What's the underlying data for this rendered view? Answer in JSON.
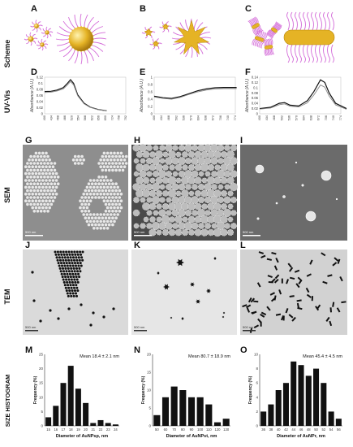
{
  "panel_letters": [
    "A",
    "B",
    "C",
    "D",
    "E",
    "F",
    "G",
    "H",
    "I",
    "J",
    "K",
    "L",
    "M",
    "N",
    "O"
  ],
  "row_labels": [
    "Scheme",
    "UV-Vis",
    "SEM",
    "TEM",
    "SIZE HISTOGRAM"
  ],
  "sem_scalebars": [
    "500 nm",
    "500 nm",
    "500 nm"
  ],
  "tem_scalebars": [
    "500 nm",
    "500 nm",
    "500 nm"
  ],
  "colors": {
    "gold": "#e5b325",
    "ligand": "#d36ad8",
    "ligand_tip": "#e5b325",
    "line_dark": "#111111",
    "line_light": "#888888",
    "sem_bg": "#9a9a9a",
    "tem_bg": "#d8d8d8"
  },
  "chart_data": [
    {
      "panel": "D",
      "type": "line",
      "ylabel": "Absorbance (A.U.)",
      "ylim": [
        0,
        0.12
      ],
      "yticks": [
        "0",
        "0.02",
        "0.04",
        "0.06",
        "0.08",
        "0.1",
        "0.12"
      ],
      "xticks": [
        "400",
        "434",
        "468",
        "486",
        "520",
        "554",
        "588",
        "622",
        "656",
        "690",
        "724",
        "758",
        "792"
      ],
      "x": [
        400,
        430,
        460,
        490,
        510,
        525,
        540,
        560,
        590,
        620,
        660,
        700
      ],
      "series": [
        {
          "values": [
            0.073,
            0.074,
            0.078,
            0.086,
            0.1,
            0.112,
            0.1,
            0.062,
            0.035,
            0.022,
            0.014,
            0.01
          ]
        },
        {
          "values": [
            0.07,
            0.071,
            0.075,
            0.082,
            0.095,
            0.106,
            0.095,
            0.059,
            0.033,
            0.021,
            0.013,
            0.01
          ]
        }
      ]
    },
    {
      "panel": "E",
      "type": "line",
      "ylabel": "Absorbance (A.U.)",
      "ylim": [
        0,
        1
      ],
      "yticks": [
        "0",
        "0.2",
        "0.4",
        "0.6",
        "0.8",
        "1"
      ],
      "xticks": [
        "400",
        "434",
        "468",
        "502",
        "536",
        "570",
        "604",
        "638",
        "672",
        "706",
        "740",
        "774"
      ],
      "x": [
        400,
        440,
        480,
        520,
        560,
        600,
        640,
        680,
        720,
        780
      ],
      "series": [
        {
          "values": [
            0.48,
            0.44,
            0.42,
            0.47,
            0.55,
            0.63,
            0.68,
            0.71,
            0.72,
            0.72
          ]
        },
        {
          "values": [
            0.46,
            0.42,
            0.4,
            0.45,
            0.53,
            0.6,
            0.65,
            0.68,
            0.69,
            0.69
          ]
        }
      ]
    },
    {
      "panel": "F",
      "type": "line",
      "ylabel": "Absorbance (A.U.)",
      "ylim": [
        0,
        0.14
      ],
      "yticks": [
        "0",
        "0.02",
        "0.04",
        "0.06",
        "0.08",
        "0.1",
        "0.12",
        "0.14"
      ],
      "xticks": [
        "400",
        "434",
        "468",
        "502",
        "536",
        "570",
        "604",
        "638",
        "672",
        "706",
        "740",
        "774"
      ],
      "x": [
        400,
        450,
        490,
        515,
        540,
        580,
        620,
        650,
        680,
        700,
        720,
        750,
        800
      ],
      "series": [
        {
          "values": [
            0.02,
            0.025,
            0.04,
            0.043,
            0.033,
            0.03,
            0.05,
            0.085,
            0.13,
            0.12,
            0.08,
            0.04,
            0.02
          ]
        },
        {
          "values": [
            0.018,
            0.022,
            0.035,
            0.038,
            0.029,
            0.026,
            0.042,
            0.072,
            0.11,
            0.102,
            0.068,
            0.034,
            0.017
          ]
        }
      ]
    },
    {
      "panel": "M",
      "type": "bar",
      "annotation": "Mean 18.4 ± 2.1 nm",
      "xlabel": "Diameter of AuNPsp, nm",
      "ylabel": "Frequency (%)",
      "ylim": [
        0,
        25
      ],
      "yticks": [
        "0",
        "5",
        "10",
        "15",
        "20",
        "25"
      ],
      "categories": [
        "15",
        "16",
        "17",
        "18",
        "19",
        "20",
        "21",
        "22",
        "23",
        "24"
      ],
      "values": [
        3,
        7,
        15,
        21,
        13,
        8,
        1,
        2,
        1,
        0.5
      ]
    },
    {
      "panel": "N",
      "type": "bar",
      "annotation": "Mean 80.7 ± 18.9 nm",
      "xlabel": "Diameter of AuNPst, nm",
      "ylabel": "Frequency (%)",
      "ylim": [
        0,
        20
      ],
      "yticks": [
        "0",
        "5",
        "10",
        "15",
        "20"
      ],
      "categories": [
        "50",
        "60",
        "70",
        "80",
        "90",
        "100",
        "110",
        "120",
        "130"
      ],
      "values": [
        3,
        8,
        11,
        10,
        8,
        8,
        6,
        1,
        2
      ]
    },
    {
      "panel": "O",
      "type": "bar",
      "annotation": "Mean 45.4 ± 4.5 nm",
      "xlabel": "Diameter of AuNPr, nm",
      "ylabel": "Frequency (%)",
      "ylim": [
        0,
        10
      ],
      "yticks": [
        "0",
        "2",
        "4",
        "6",
        "8",
        "10"
      ],
      "categories": [
        "36",
        "38",
        "40",
        "42",
        "44",
        "46",
        "48",
        "50",
        "52",
        "54",
        "56"
      ],
      "values": [
        2,
        3,
        5,
        6,
        9,
        8.5,
        7,
        8,
        6,
        2,
        1
      ]
    }
  ]
}
